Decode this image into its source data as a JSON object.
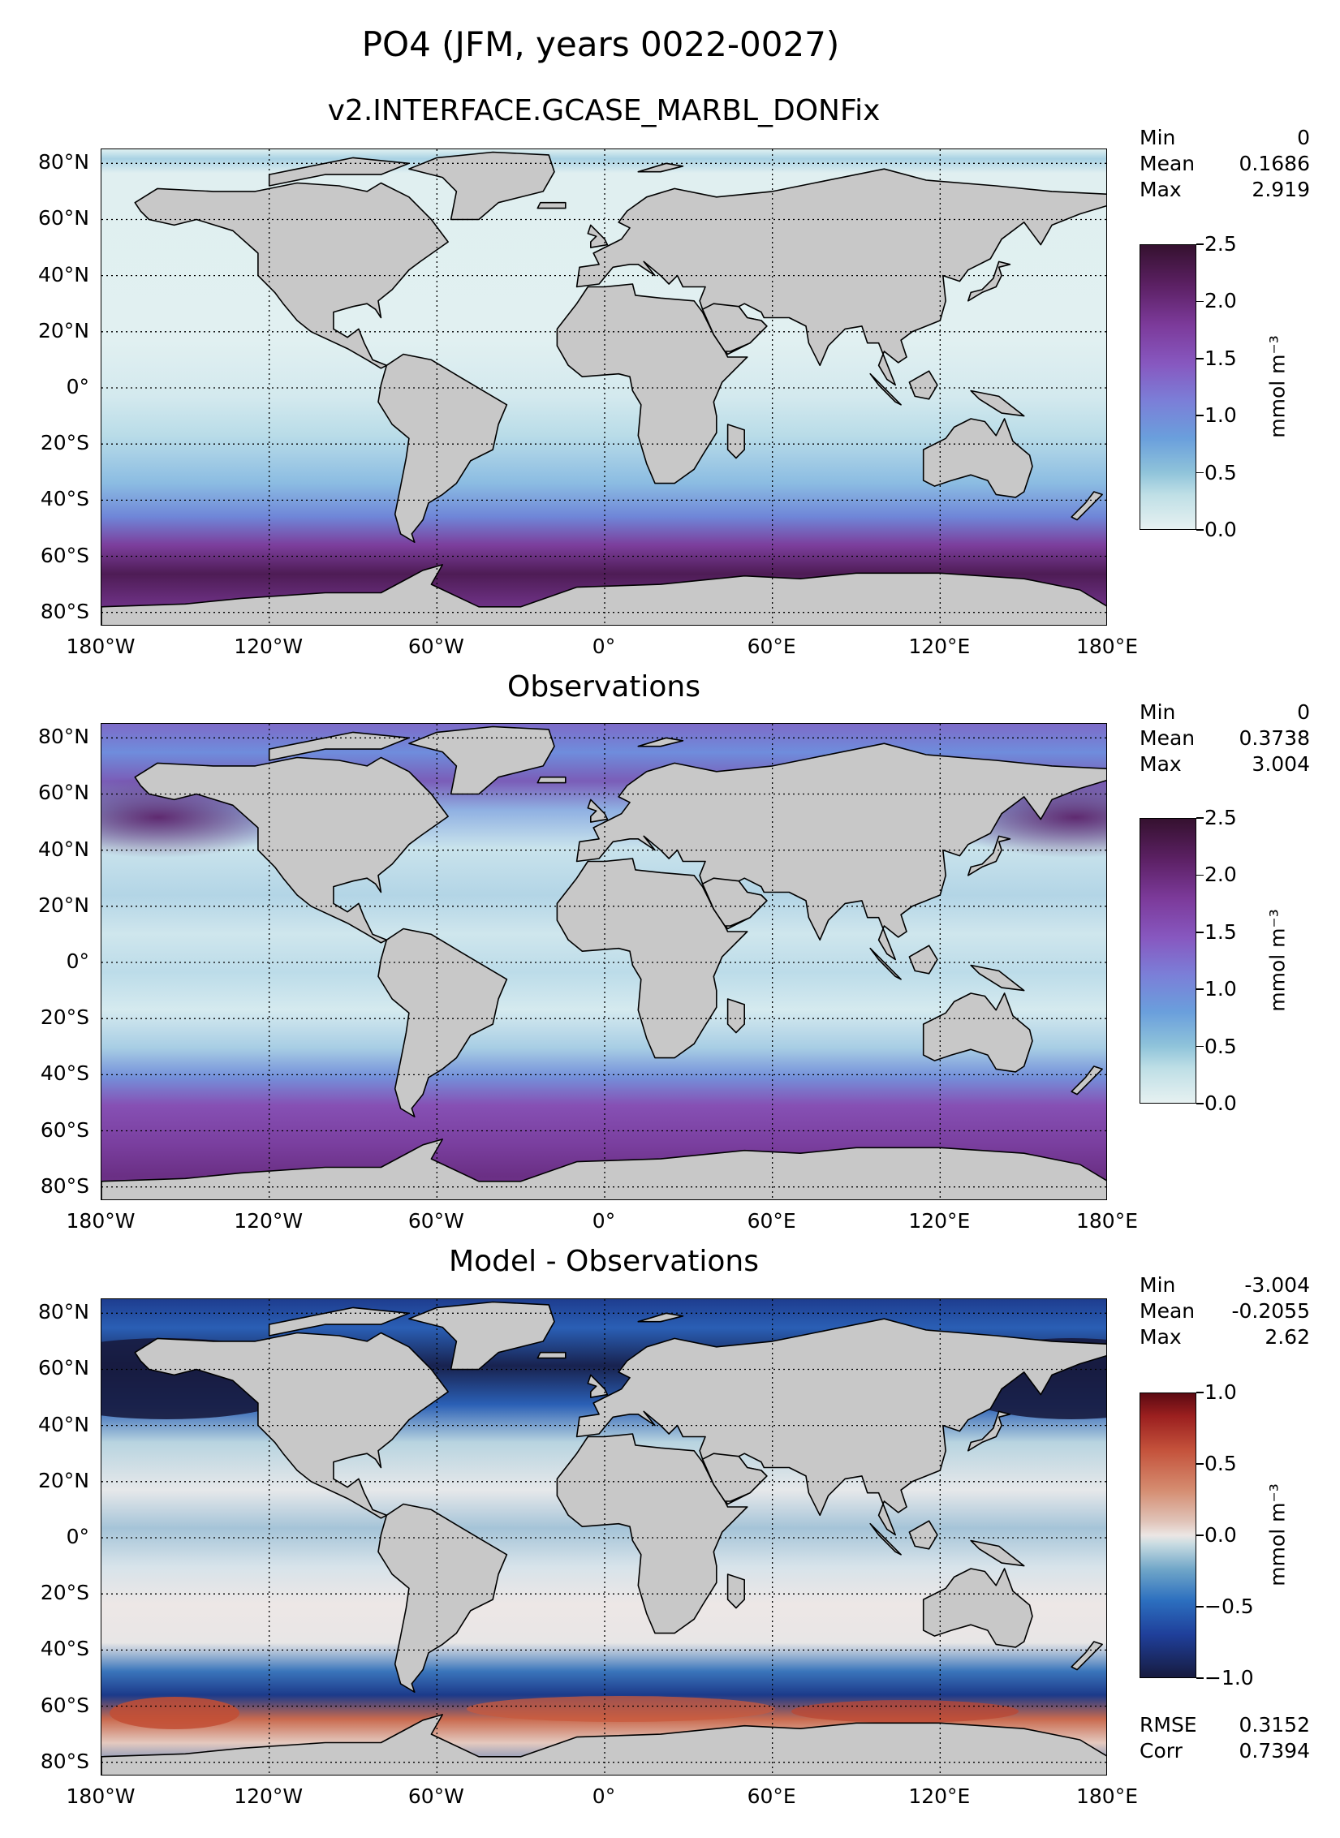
{
  "figure_title": "PO4 (JFM, years 0022-0027)",
  "panels": [
    {
      "title": "v2.INTERFACE.GCASE_MARBL_DONFix",
      "stats": [
        {
          "label": "Min",
          "value": "0"
        },
        {
          "label": "Mean",
          "value": "0.1686"
        },
        {
          "label": "Max",
          "value": "2.919"
        }
      ],
      "colorbar": {
        "ticks": [
          "2.5",
          "2.0",
          "1.5",
          "1.0",
          "0.5",
          "0.0"
        ],
        "unit": "mmol m⁻³",
        "range": [
          0,
          2.5
        ]
      }
    },
    {
      "title": "Observations",
      "stats": [
        {
          "label": "Min",
          "value": "0"
        },
        {
          "label": "Mean",
          "value": "0.3738"
        },
        {
          "label": "Max",
          "value": "3.004"
        }
      ],
      "colorbar": {
        "ticks": [
          "2.5",
          "2.0",
          "1.5",
          "1.0",
          "0.5",
          "0.0"
        ],
        "unit": "mmol m⁻³",
        "range": [
          0,
          2.5
        ]
      }
    },
    {
      "title": "Model - Observations",
      "stats": [
        {
          "label": "Min",
          "value": "-3.004"
        },
        {
          "label": "Mean",
          "value": "-0.2055"
        },
        {
          "label": "Max",
          "value": "2.62"
        }
      ],
      "extra_stats": [
        {
          "label": "RMSE",
          "value": "0.3152"
        },
        {
          "label": "Corr",
          "value": "0.7394"
        }
      ],
      "colorbar": {
        "ticks": [
          "1.0",
          "0.5",
          "0.0",
          "−0.5",
          "−1.0"
        ],
        "unit": "mmol m⁻³",
        "range": [
          -1,
          1
        ]
      }
    }
  ],
  "lat_labels": [
    "80°N",
    "60°N",
    "40°N",
    "20°N",
    "0°",
    "20°S",
    "40°S",
    "60°S",
    "80°S"
  ],
  "lon_labels": [
    "180°W",
    "120°W",
    "60°W",
    "0°",
    "60°E",
    "120°E",
    "180°E"
  ],
  "colors": {
    "land": "#c8c8c8",
    "coast": "#000000"
  }
}
